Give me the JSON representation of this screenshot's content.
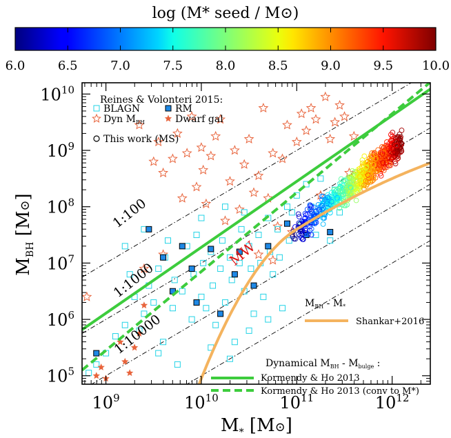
{
  "colorbar": {
    "title": "log (M* seed / M⊙)",
    "range": [
      6.0,
      10.0
    ],
    "tick_labels": [
      "6.0",
      "6.5",
      "7.0",
      "7.5",
      "8.0",
      "8.5",
      "9.0",
      "9.5",
      "10.0"
    ]
  },
  "chart_data": {
    "type": "scatter",
    "xlabel": "M* [M⊙]",
    "ylabel": "MBH [M⊙]",
    "xscale": "log",
    "yscale": "log",
    "xlim_log10": [
      8.75,
      12.4
    ],
    "ylim_log10": [
      4.85,
      10.2
    ],
    "x_tick_labels": [
      "10^9",
      "10^10",
      "10^11",
      "10^12"
    ],
    "y_tick_labels": [
      "10^5",
      "10^6",
      "10^7",
      "10^8",
      "10^9",
      "10^10"
    ],
    "legend_top": {
      "heading": "Reines & Volonteri 2015:",
      "entries": [
        "BLAGN",
        "RM",
        "Dyn MBH",
        "Dwarf gal",
        "This work (MS)"
      ]
    },
    "legend_mid": {
      "heading": "MBH - M*",
      "entries": [
        "Shankar+2016"
      ]
    },
    "legend_bottom": {
      "heading": "Dynamical MBH - Mbulge :",
      "entries": [
        "Kormendy & Ho 2013",
        "Kormendy & Ho 2013 (conv to M*)"
      ]
    },
    "ratio_labels": [
      "1:100",
      "1:1000",
      "1:10000"
    ],
    "annotation": "MW",
    "series": [
      {
        "name": "BLAGN",
        "marker": "open-square",
        "color": "#22d3e6",
        "points": [
          [
            8.82,
            5.05
          ],
          [
            8.9,
            5.2
          ],
          [
            9.0,
            5.4
          ],
          [
            9.1,
            5.7
          ],
          [
            9.2,
            5.9
          ],
          [
            9.3,
            6.4
          ],
          [
            9.35,
            5.8
          ],
          [
            9.4,
            6.1
          ],
          [
            9.45,
            6.6
          ],
          [
            9.5,
            6.3
          ],
          [
            9.55,
            6.9
          ],
          [
            9.6,
            5.6
          ],
          [
            9.62,
            7.1
          ],
          [
            9.7,
            6.2
          ],
          [
            9.72,
            6.7
          ],
          [
            9.8,
            6.5
          ],
          [
            9.85,
            7.3
          ],
          [
            9.9,
            6.0
          ],
          [
            9.92,
            6.8
          ],
          [
            9.95,
            7.5
          ],
          [
            10.0,
            6.4
          ],
          [
            10.02,
            7.0
          ],
          [
            10.05,
            6.2
          ],
          [
            10.1,
            7.2
          ],
          [
            10.12,
            6.6
          ],
          [
            10.15,
            5.9
          ],
          [
            10.2,
            6.9
          ],
          [
            10.22,
            7.4
          ],
          [
            10.25,
            6.3
          ],
          [
            10.3,
            7.1
          ],
          [
            10.32,
            6.7
          ],
          [
            10.35,
            5.6
          ],
          [
            10.4,
            7.0
          ],
          [
            10.42,
            7.6
          ],
          [
            10.45,
            6.5
          ],
          [
            10.5,
            7.3
          ],
          [
            10.52,
            6.9
          ],
          [
            10.55,
            6.1
          ],
          [
            10.6,
            7.5
          ],
          [
            10.62,
            7.0
          ],
          [
            10.65,
            6.4
          ],
          [
            10.7,
            7.8
          ],
          [
            10.72,
            7.2
          ],
          [
            10.75,
            6.8
          ],
          [
            10.8,
            7.6
          ],
          [
            10.82,
            7.1
          ],
          [
            10.85,
            6.2
          ],
          [
            10.9,
            8.0
          ],
          [
            10.92,
            7.4
          ],
          [
            10.95,
            7.9
          ],
          [
            11.0,
            8.2
          ],
          [
            11.05,
            7.7
          ],
          [
            11.1,
            8.4
          ],
          [
            11.15,
            8.0
          ],
          [
            11.2,
            7.5
          ],
          [
            11.25,
            8.5
          ],
          [
            11.3,
            8.1
          ],
          [
            11.35,
            7.4
          ],
          [
            11.4,
            8.3
          ],
          [
            11.45,
            7.9
          ],
          [
            10.3,
            5.3
          ],
          [
            10.5,
            5.8
          ],
          [
            10.7,
            6.0
          ],
          [
            9.75,
            5.2
          ],
          [
            9.55,
            5.4
          ],
          [
            9.2,
            7.3
          ],
          [
            9.4,
            7.6
          ],
          [
            10.0,
            7.8
          ],
          [
            10.25,
            8.0
          ],
          [
            10.1,
            5.5
          ],
          [
            9.25,
            6.8
          ],
          [
            9.65,
            7.4
          ],
          [
            10.45,
            7.9
          ]
        ]
      },
      {
        "name": "RM",
        "marker": "filled-square",
        "color": "#1e88e5",
        "points": [
          [
            8.9,
            5.4
          ],
          [
            9.45,
            7.6
          ],
          [
            9.6,
            7.1
          ],
          [
            9.7,
            6.5
          ],
          [
            9.9,
            6.9
          ],
          [
            9.95,
            6.3
          ],
          [
            10.1,
            7.25
          ],
          [
            10.35,
            6.8
          ],
          [
            10.4,
            7.2
          ],
          [
            10.55,
            6.6
          ],
          [
            10.7,
            7.3
          ],
          [
            10.9,
            7.7
          ],
          [
            11.1,
            7.5
          ],
          [
            11.35,
            7.55
          ],
          [
            10.2,
            6.1
          ],
          [
            9.8,
            7.3
          ]
        ]
      },
      {
        "name": "Dyn MBH",
        "marker": "open-star",
        "color": "#e8643c",
        "points": [
          [
            9.35,
            9.45
          ],
          [
            9.5,
            8.8
          ],
          [
            9.55,
            9.15
          ],
          [
            9.6,
            8.6
          ],
          [
            9.7,
            8.85
          ],
          [
            9.75,
            9.3
          ],
          [
            9.8,
            8.15
          ],
          [
            9.85,
            8.95
          ],
          [
            9.9,
            9.6
          ],
          [
            9.95,
            8.35
          ],
          [
            10.0,
            9.05
          ],
          [
            10.02,
            8.65
          ],
          [
            10.05,
            8.05
          ],
          [
            10.1,
            8.9
          ],
          [
            10.15,
            9.25
          ],
          [
            10.2,
            9.55
          ],
          [
            10.25,
            7.75
          ],
          [
            10.3,
            8.45
          ],
          [
            10.35,
            9.0
          ],
          [
            10.4,
            7.95
          ],
          [
            10.45,
            8.75
          ],
          [
            10.5,
            9.2
          ],
          [
            10.55,
            8.25
          ],
          [
            10.6,
            8.55
          ],
          [
            10.65,
            9.75
          ],
          [
            10.7,
            8.15
          ],
          [
            10.75,
            8.95
          ],
          [
            10.8,
            7.65
          ],
          [
            10.85,
            8.85
          ],
          [
            10.9,
            9.45
          ],
          [
            11.0,
            9.15
          ],
          [
            11.05,
            9.65
          ],
          [
            11.1,
            9.35
          ],
          [
            11.15,
            9.75
          ],
          [
            11.2,
            9.55
          ],
          [
            11.3,
            9.95
          ],
          [
            11.4,
            9.5
          ],
          [
            11.25,
            8.2
          ],
          [
            10.95,
            7.55
          ],
          [
            11.35,
            9.2
          ],
          [
            11.45,
            9.8
          ],
          [
            11.5,
            9.6
          ],
          [
            11.55,
            8.6
          ],
          [
            9.4,
            6.9
          ],
          [
            9.6,
            7.15
          ],
          [
            10.6,
            7.15
          ],
          [
            10.75,
            7.05
          ],
          [
            11.6,
            9.25
          ],
          [
            8.8,
            6.4
          ]
        ]
      },
      {
        "name": "Dwarf gal",
        "marker": "filled-star",
        "color": "#e8643c",
        "points": [
          [
            8.9,
            5.0
          ],
          [
            8.95,
            5.15
          ],
          [
            9.0,
            4.95
          ],
          [
            9.15,
            5.6
          ],
          [
            9.2,
            5.25
          ],
          [
            9.25,
            5.05
          ],
          [
            9.3,
            5.5
          ],
          [
            9.35,
            5.75
          ],
          [
            9.4,
            6.25
          ]
        ]
      }
    ],
    "this_work_ms": {
      "marker": "open-circle",
      "color_by": "log(M* seed / M⊙)",
      "trend_note": "dense cloud from log M*≈10.95 to 12.1, colour rising from 6 to 10 along M*"
    },
    "lines": [
      {
        "name": "Kormendy & Ho 2013",
        "style": "solid",
        "color": "#3dcc3d",
        "log_ratio": -2.55,
        "slope": 1.17,
        "pivot_log": 11.0
      },
      {
        "name": "Kormendy & Ho 2013 (conv to M*)",
        "style": "dashed",
        "color": "#3dcc3d",
        "log_ratio": -2.75,
        "slope": 1.4,
        "pivot_log": 11.0
      },
      {
        "name": "Shankar+2016",
        "style": "solid",
        "color": "#f4b35e"
      },
      {
        "name": "1:100",
        "style": "dashdot",
        "color": "#000000",
        "log_ratio": -2
      },
      {
        "name": "1:1000",
        "style": "dashdot",
        "color": "#000000",
        "log_ratio": -3
      },
      {
        "name": "1:10000",
        "style": "dashdot",
        "color": "#000000",
        "log_ratio": -4
      },
      {
        "name": "1:100000",
        "style": "dashdot",
        "color": "#000000",
        "log_ratio": -5
      }
    ],
    "grid": false,
    "legend_placement": "top-left"
  }
}
